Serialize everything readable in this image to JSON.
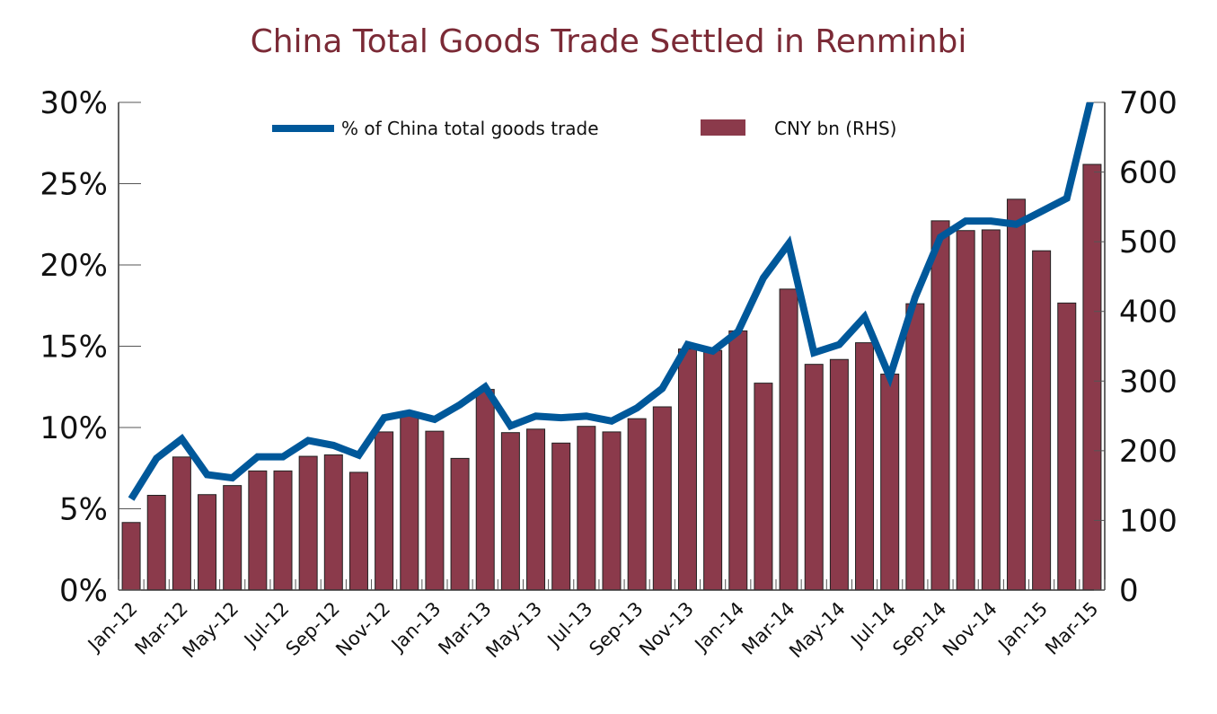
{
  "chart_data": {
    "type": "bar+line",
    "title": "China Total Goods Trade Settled in Renminbi",
    "categories": [
      "Jan-12",
      "Feb-12",
      "Mar-12",
      "Apr-12",
      "May-12",
      "Jun-12",
      "Jul-12",
      "Aug-12",
      "Sep-12",
      "Oct-12",
      "Nov-12",
      "Dec-12",
      "Jan-13",
      "Feb-13",
      "Mar-13",
      "Apr-13",
      "May-13",
      "Jun-13",
      "Jul-13",
      "Aug-13",
      "Sep-13",
      "Oct-13",
      "Nov-13",
      "Dec-13",
      "Jan-14",
      "Feb-14",
      "Mar-14",
      "Apr-14",
      "May-14",
      "Jun-14",
      "Jul-14",
      "Aug-14",
      "Sep-14",
      "Oct-14",
      "Nov-14",
      "Dec-14",
      "Jan-15",
      "Feb-15",
      "Mar-15"
    ],
    "x_tick_labels": [
      "Jan-12",
      "Mar-12",
      "May-12",
      "Jul-12",
      "Sep-12",
      "Nov-12",
      "Jan-13",
      "Mar-13",
      "May-13",
      "Jul-13",
      "Sep-13",
      "Nov-13",
      "Jan-14",
      "Mar-14",
      "May-14",
      "Jul-14",
      "Sep-14",
      "Nov-14",
      "Jan-15",
      "Mar-15"
    ],
    "y_left": {
      "ylim": [
        0,
        30
      ],
      "ticks": [
        "0%",
        "5%",
        "10%",
        "15%",
        "20%",
        "25%",
        "30%"
      ]
    },
    "y_right": {
      "ylim": [
        0,
        700
      ],
      "ticks": [
        "0",
        "100",
        "200",
        "300",
        "400",
        "500",
        "600",
        "700"
      ]
    },
    "grid": false,
    "legend_position": "top",
    "series": [
      {
        "name": "% of China total goods trade",
        "type": "line",
        "axis": "left",
        "color": "#00589a",
        "values": [
          5.6,
          8.1,
          9.3,
          7.1,
          6.9,
          8.2,
          8.2,
          9.2,
          8.9,
          8.3,
          10.6,
          10.9,
          10.5,
          11.4,
          12.5,
          10.1,
          10.7,
          10.6,
          10.7,
          10.4,
          11.2,
          12.4,
          15.1,
          14.7,
          15.9,
          19.2,
          21.3,
          14.6,
          15.1,
          16.8,
          13.1,
          18.0,
          21.7,
          22.7,
          22.7,
          22.5,
          23.3,
          24.1,
          30.5
        ]
      },
      {
        "name": "CNY bn (RHS)",
        "type": "bar",
        "axis": "right",
        "color": "#8b3a4b",
        "values": [
          97,
          136,
          191,
          137,
          150,
          171,
          171,
          192,
          194,
          169,
          227,
          253,
          228,
          189,
          288,
          226,
          231,
          211,
          235,
          227,
          246,
          263,
          346,
          344,
          372,
          297,
          432,
          324,
          331,
          355,
          310,
          411,
          530,
          516,
          517,
          561,
          487,
          412,
          611
        ]
      }
    ]
  }
}
